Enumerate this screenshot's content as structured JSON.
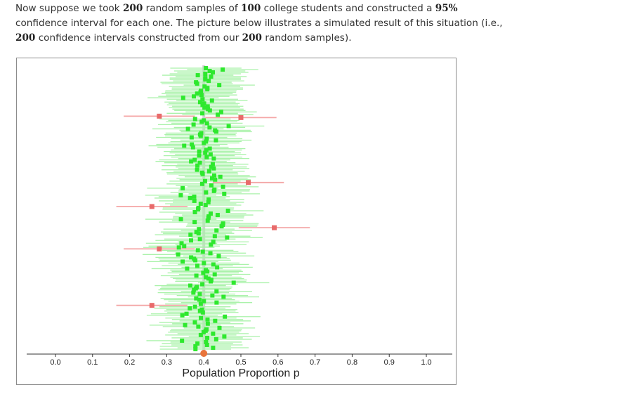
{
  "intro": {
    "t1": "Now suppose we took ",
    "n_samples": "200",
    "t2": " random samples of ",
    "sample_size": "100",
    "t3": " college students and constructed a ",
    "conf_level": "95%",
    "t4": " confidence interval for each one. The picture below illustrates a simulated result of this situation (i.e., ",
    "n_intervals": "200",
    "t5": " confidence intervals constructed from our ",
    "n_samples_2": "200",
    "t6": " random samples)."
  },
  "chart_data": {
    "type": "scatter",
    "description_free": true,
    "xlabel": "Population Proportion p",
    "xlim": [
      -0.07,
      1.07
    ],
    "xticks": [
      0.0,
      0.1,
      0.2,
      0.3,
      0.4,
      0.5,
      0.6,
      0.7,
      0.8,
      0.9,
      1.0
    ],
    "xtick_labels": [
      "0.0",
      "0.1",
      "0.2",
      "0.3",
      "0.4",
      "0.5",
      "0.6",
      "0.7",
      "0.8",
      "0.9",
      "1.0"
    ],
    "true_p": 0.4,
    "n_intervals": 200,
    "ci_half_width": 0.096,
    "colors": {
      "captures": "#2ee82e",
      "captures_line": "#aaf2aa",
      "misses": "#e86a6a",
      "misses_line": "#f4a6a6",
      "true_p_line": "#d0d0d0",
      "true_p_marker": "#e8743b"
    },
    "missed_intervals": [
      {
        "index": 34,
        "p_hat": 0.28
      },
      {
        "index": 35,
        "p_hat": 0.5
      },
      {
        "index": 81,
        "p_hat": 0.52
      },
      {
        "index": 98,
        "p_hat": 0.26
      },
      {
        "index": 113,
        "p_hat": 0.59
      },
      {
        "index": 128,
        "p_hat": 0.28
      },
      {
        "index": 168,
        "p_hat": 0.26
      }
    ],
    "captured_p_hat_range": [
      0.31,
      0.49
    ]
  }
}
